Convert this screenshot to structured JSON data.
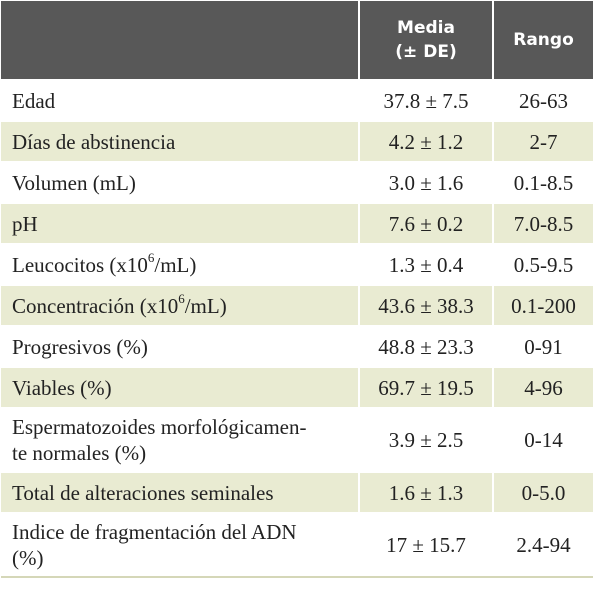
{
  "table": {
    "headers": {
      "parameter": "",
      "mean_line1": "Media",
      "mean_line2": "(± DE)",
      "range": "Rango"
    },
    "rows": [
      {
        "label": "Edad",
        "mean": "37.8 ± 7.5",
        "range": "26-63"
      },
      {
        "label": "Días de abstinencia",
        "mean": "4.2 ± 1.2",
        "range": "2-7"
      },
      {
        "label": "Volumen (mL)",
        "mean": "3.0 ± 1.6",
        "range": "0.1-8.5"
      },
      {
        "label": "pH",
        "mean": "7.6 ± 0.2",
        "range": "7.0-8.5"
      },
      {
        "label_pre": "Leucocitos (x10",
        "label_sup": "6",
        "label_post": "/mL)",
        "mean": "1.3 ± 0.4",
        "range": "0.5-9.5"
      },
      {
        "label_pre": "Concentración (x10",
        "label_sup": "6",
        "label_post": "/mL)",
        "mean": "43.6 ± 38.3",
        "range": "0.1-200"
      },
      {
        "label": "Progresivos (%)",
        "mean": "48.8 ± 23.3",
        "range": "0-91"
      },
      {
        "label": "Viables (%)",
        "mean": "69.7 ± 19.5",
        "range": "4-96"
      },
      {
        "label_line1": "Espermatozoides morfológicamen-",
        "label_line2": "te normales (%)",
        "mean": "3.9 ± 2.5",
        "range": "0-14"
      },
      {
        "label": "Total de alteraciones seminales",
        "mean": "1.6 ± 1.3",
        "range": "0-5.0"
      },
      {
        "label_line1": "Indice de fragmentación del ADN",
        "label_line2": "(%)",
        "mean": "17 ± 15.7",
        "range": "2.4-94"
      }
    ]
  }
}
